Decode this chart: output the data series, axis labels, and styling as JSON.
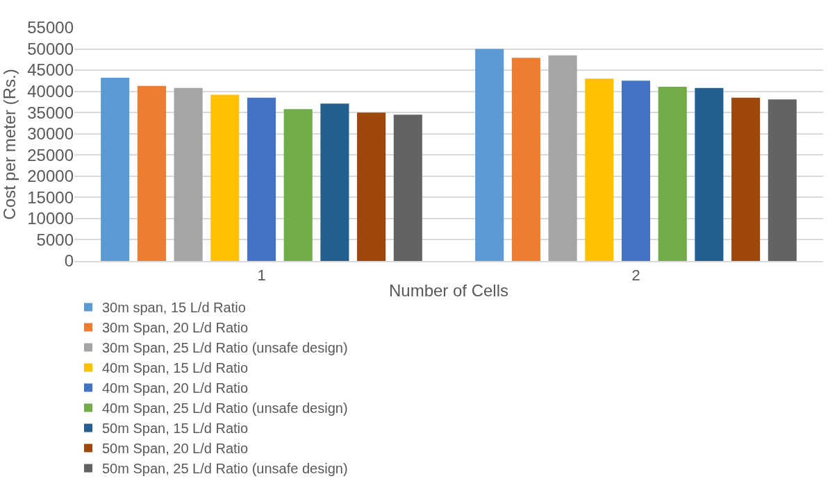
{
  "chart_data": {
    "type": "bar",
    "xlabel": "Number of Cells",
    "ylabel": "Cost per meter (Rs.)",
    "categories": [
      "1",
      "2"
    ],
    "ylim": [
      0,
      55000
    ],
    "yticks": [
      0,
      5000,
      10000,
      15000,
      20000,
      25000,
      30000,
      35000,
      40000,
      45000,
      50000,
      55000
    ],
    "grid": "y",
    "legend": "bottom",
    "series": [
      {
        "name": "30m span, 15 L/d Ratio",
        "color": "#5b9bd5",
        "values": [
          43200,
          50000
        ]
      },
      {
        "name": "30m Span, 20 L/d Ratio",
        "color": "#ed7d31",
        "values": [
          41300,
          47900
        ]
      },
      {
        "name": "30m Span, 25 L/d Ratio (unsafe design)",
        "color": "#a5a5a5",
        "values": [
          40800,
          48500
        ]
      },
      {
        "name": "40m Span, 15 L/d Ratio",
        "color": "#ffc000",
        "values": [
          39200,
          43000
        ]
      },
      {
        "name": "40m Span, 20 L/d Ratio",
        "color": "#4472c4",
        "values": [
          38500,
          42500
        ]
      },
      {
        "name": "40m Span, 25 L/d Ratio (unsafe design)",
        "color": "#70ad47",
        "values": [
          35800,
          41100
        ]
      },
      {
        "name": "50m Span, 15 L/d Ratio",
        "color": "#255e91",
        "values": [
          37100,
          40800
        ]
      },
      {
        "name": "50m Span, 20 L/d Ratio",
        "color": "#9e480e",
        "values": [
          35000,
          38500
        ]
      },
      {
        "name": "50m Span, 25 L/d Ratio (unsafe design)",
        "color": "#636363",
        "values": [
          34500,
          38100
        ]
      }
    ]
  }
}
